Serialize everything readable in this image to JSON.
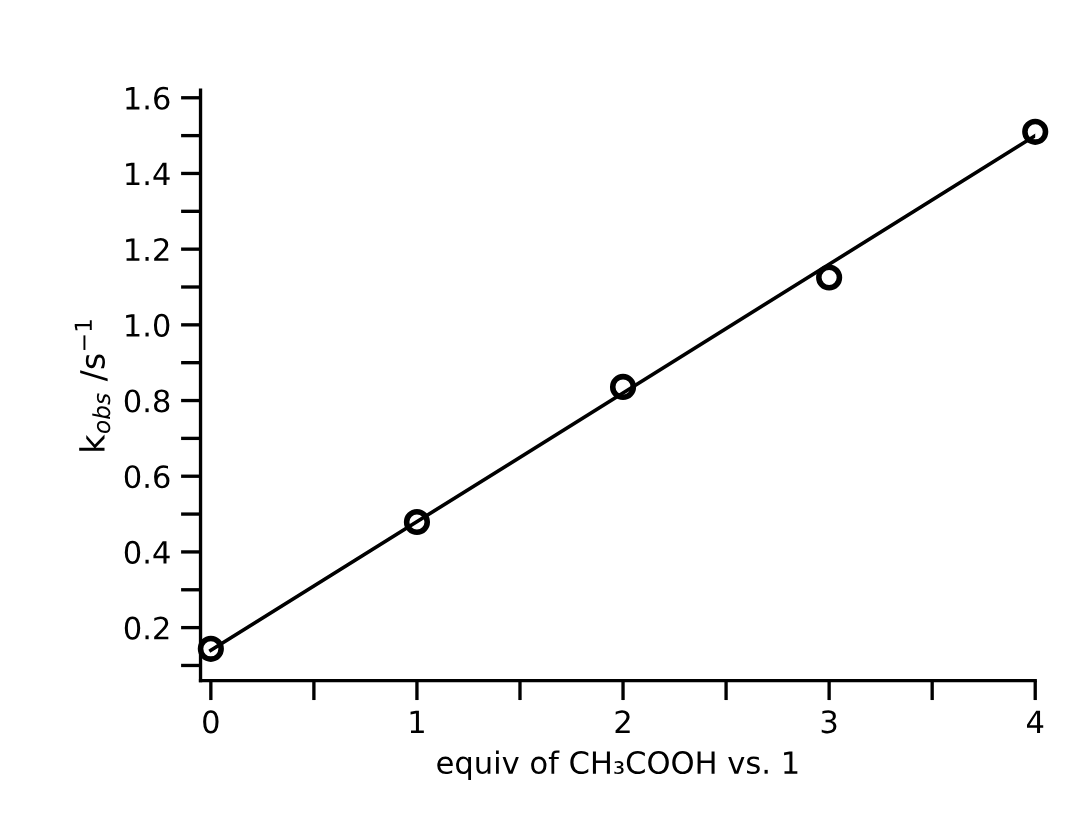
{
  "chart_data": {
    "type": "scatter",
    "xlabel": "equiv of CH₃COOH vs. 1",
    "ylabel": "k$_{obs}$ /s$^{−1}$",
    "x": [
      0,
      1,
      2,
      3,
      4
    ],
    "series": [
      {
        "color": "#000000",
        "marker": "circle",
        "values": [
          0.144,
          0.479,
          0.836,
          1.125,
          1.51
        ]
      },
      {
        "type": "line",
        "color": "#000000",
        "x": [
          0,
          4
        ],
        "values": [
          0.14,
          1.5
        ],
        "marker": "none",
        "line_style": "solid"
      }
    ],
    "xlim": [
      -0.05,
      4
    ],
    "ylim": [
      0.06,
      1.62
    ],
    "xticks": [
      0,
      {
        "value": 0.5,
        "label": null
      },
      1,
      {
        "value": 1.5,
        "label": null
      },
      2,
      {
        "value": 2.5,
        "label": null
      },
      3,
      {
        "value": 3.5,
        "label": null
      },
      4
    ],
    "yticks": [
      {
        "value": 0.1,
        "label": null
      },
      0.2,
      {
        "value": 0.3,
        "label": null
      },
      0.4,
      {
        "value": 0.5,
        "label": null
      },
      0.6,
      {
        "value": 0.7,
        "label": null
      },
      0.8,
      {
        "value": 0.9,
        "label": null
      },
      {
        "value": 1.0,
        "label": "1.0"
      },
      {
        "value": 1.1,
        "label": null
      },
      1.2,
      {
        "value": 1.3,
        "label": null
      },
      1.4,
      {
        "value": 1.5,
        "label": null
      },
      1.6
    ],
    "grid": false,
    "legend": false
  }
}
